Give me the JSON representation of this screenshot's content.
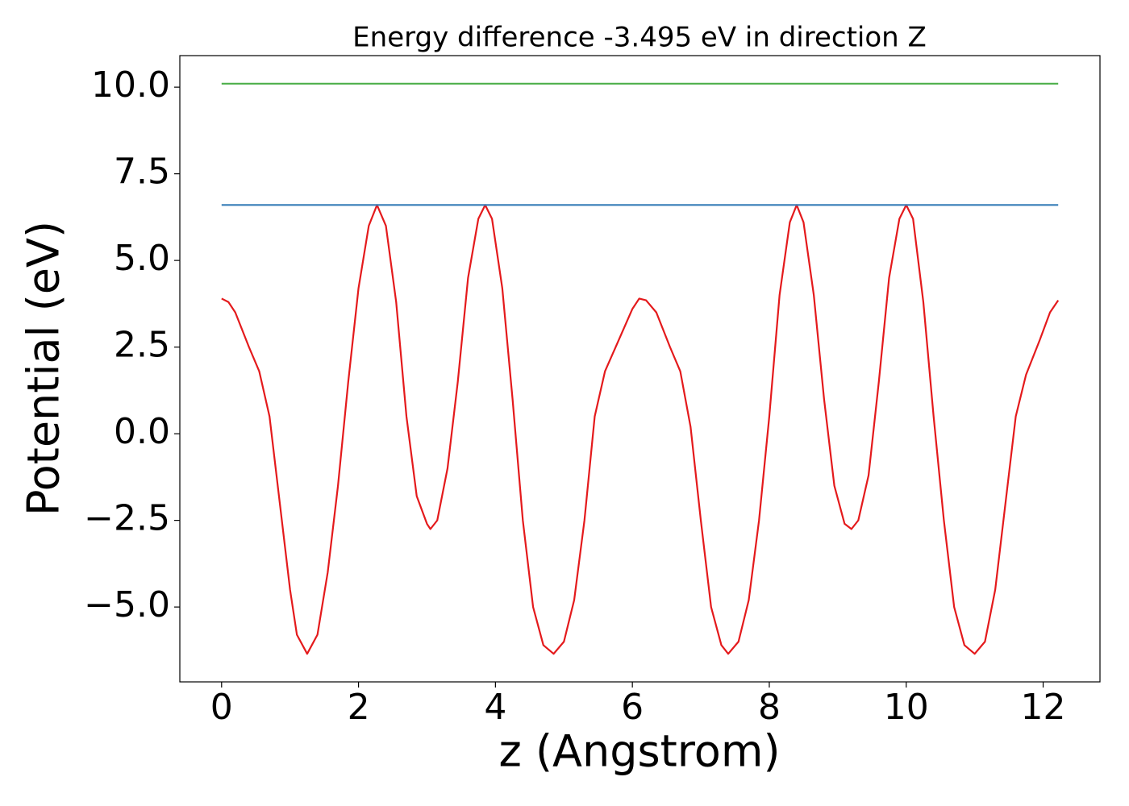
{
  "chart_data": {
    "type": "line",
    "title": "Energy difference -3.495 eV in direction Z",
    "x_label": "z (Angstrom)",
    "y_label": "Potential (eV)",
    "xlim": [
      -0.61,
      12.83
    ],
    "ylim": [
      -7.16,
      10.91
    ],
    "xticks": [
      0,
      2,
      4,
      6,
      8,
      10,
      12
    ],
    "yticks": [
      {
        "value": -5,
        "label": "−5.0"
      },
      {
        "value": -2.5,
        "label": "−2.5"
      },
      {
        "value": 0,
        "label": "0.0"
      },
      2.5,
      {
        "value": 5,
        "label": "5.0"
      },
      7.5,
      {
        "value": 10,
        "label": "10.0"
      }
    ],
    "series": [
      {
        "color": "#e41a1c",
        "x": [
          0,
          0.1,
          0.2,
          0.4,
          0.55,
          0.7,
          0.85,
          1.0,
          1.1,
          1.25,
          1.4,
          1.55,
          1.7,
          1.85,
          2.0,
          2.15,
          2.27,
          2.4,
          2.55,
          2.7,
          2.85,
          3.0,
          3.05,
          3.15,
          3.3,
          3.45,
          3.6,
          3.75,
          3.85,
          3.95,
          4.1,
          4.25,
          4.4,
          4.55,
          4.7,
          4.85,
          5.0,
          5.15,
          5.3,
          5.45,
          5.6,
          5.8,
          6.0,
          6.1,
          6.2,
          6.35,
          6.55,
          6.7,
          6.85,
          7.0,
          7.15,
          7.3,
          7.4,
          7.55,
          7.7,
          7.85,
          8.0,
          8.15,
          8.3,
          8.4,
          8.5,
          8.65,
          8.8,
          8.95,
          9.1,
          9.2,
          9.3,
          9.45,
          9.6,
          9.75,
          9.9,
          10.0,
          10.1,
          10.25,
          10.4,
          10.55,
          10.7,
          10.85,
          11.0,
          11.15,
          11.3,
          11.45,
          11.6,
          11.75,
          11.95,
          12.1,
          12.22
        ],
        "values": [
          3.9,
          3.8,
          3.5,
          2.5,
          1.8,
          0.5,
          -2,
          -4.5,
          -5.8,
          -6.35,
          -5.8,
          -4,
          -1.5,
          1.5,
          4.2,
          6.0,
          6.6,
          6.0,
          3.8,
          0.5,
          -1.8,
          -2.6,
          -2.75,
          -2.5,
          -1,
          1.5,
          4.5,
          6.2,
          6.6,
          6.2,
          4.2,
          1,
          -2.5,
          -5,
          -6.1,
          -6.35,
          -6,
          -4.8,
          -2.5,
          0.5,
          1.8,
          2.7,
          3.6,
          3.9,
          3.85,
          3.5,
          2.5,
          1.8,
          0.2,
          -2.5,
          -5,
          -6.1,
          -6.35,
          -6,
          -4.8,
          -2.5,
          0.5,
          4,
          6.1,
          6.6,
          6.1,
          4,
          1,
          -1.5,
          -2.6,
          -2.75,
          -2.5,
          -1.2,
          1.5,
          4.5,
          6.2,
          6.6,
          6.2,
          3.8,
          0.5,
          -2.5,
          -5,
          -6.1,
          -6.35,
          -6,
          -4.5,
          -2,
          0.5,
          1.7,
          2.7,
          3.5,
          3.85
        ]
      },
      {
        "color": "#377eb8",
        "x": [
          0,
          12.22
        ],
        "values": [
          6.6,
          6.6
        ]
      },
      {
        "color": "#4daf4a",
        "x": [
          0,
          12.22
        ],
        "values": [
          10.1,
          10.1
        ]
      }
    ]
  }
}
